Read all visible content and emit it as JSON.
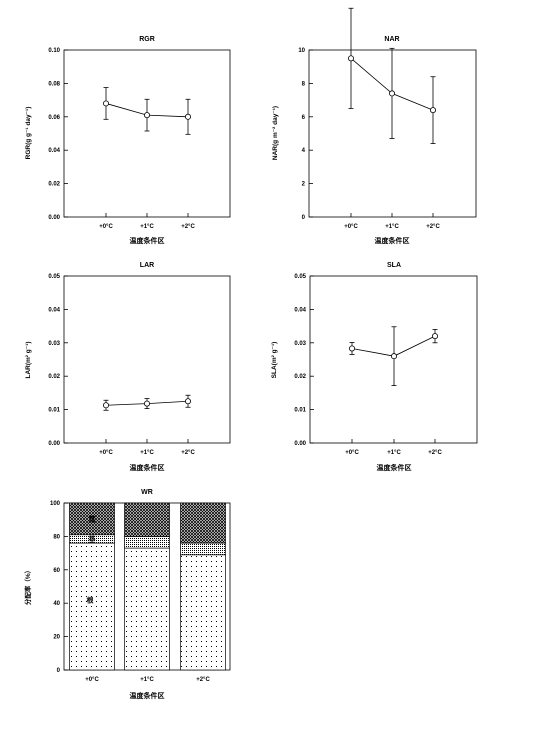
{
  "chart_data": [
    {
      "type": "line",
      "title": "RGR",
      "xlabel": "温度条件区",
      "ylabel": "RGR(g g⁻¹ day⁻¹)",
      "categories": [
        "+0°C",
        "+1°C",
        "+2°C"
      ],
      "values": [
        0.068,
        0.061,
        0.06
      ],
      "errors": [
        0.0095,
        0.0095,
        0.0105
      ],
      "ylim": [
        0,
        0.1
      ],
      "yticks": [
        "0.00",
        "0.02",
        "0.04",
        "0.06",
        "0.08",
        "0.10"
      ],
      "grid": false
    },
    {
      "type": "line",
      "title": "NAR",
      "xlabel": "温度条件区",
      "ylabel": "NAR(g m⁻² day⁻¹)",
      "categories": [
        "+0°C",
        "+1°C",
        "+2°C"
      ],
      "values": [
        9.5,
        7.4,
        6.4
      ],
      "errors": [
        3.0,
        2.7,
        2.0
      ],
      "ylim": [
        0,
        10
      ],
      "yticks": [
        "0",
        "2",
        "4",
        "6",
        "8",
        "10"
      ],
      "grid": false
    },
    {
      "type": "line",
      "title": "LAR",
      "xlabel": "温度条件区",
      "ylabel": "LAR(m² g⁻¹)",
      "categories": [
        "+0°C",
        "+1°C",
        "+2°C"
      ],
      "values": [
        0.0113,
        0.0118,
        0.0125
      ],
      "errors": [
        0.0015,
        0.0015,
        0.0018
      ],
      "ylim": [
        0,
        0.05
      ],
      "yticks": [
        "0.00",
        "0.01",
        "0.02",
        "0.03",
        "0.04",
        "0.05"
      ],
      "grid": false
    },
    {
      "type": "line",
      "title": "SLA",
      "xlabel": "温度条件区",
      "ylabel": "SLA(m² g⁻¹)",
      "categories": [
        "+0°C",
        "+1°C",
        "+2°C"
      ],
      "values": [
        0.0283,
        0.026,
        0.032
      ],
      "errors": [
        0.0018,
        0.0088,
        0.002
      ],
      "ylim": [
        0,
        0.05
      ],
      "yticks": [
        "0.00",
        "0.01",
        "0.02",
        "0.03",
        "0.04",
        "0.05"
      ],
      "grid": false
    },
    {
      "type": "bar",
      "stacked": true,
      "title": "WR",
      "xlabel": "温度条件区",
      "ylabel": "分配率（%）",
      "categories": [
        "+0°C",
        "+1°C",
        "+2°C"
      ],
      "series": [
        {
          "name": "根",
          "values": [
            76,
            73,
            69
          ],
          "pattern": "dots"
        },
        {
          "name": "茎",
          "values": [
            5,
            7,
            7
          ],
          "pattern": "fine-dots"
        },
        {
          "name": "葉",
          "values": [
            19,
            20,
            24
          ],
          "pattern": "crosshatch"
        }
      ],
      "ylim": [
        0,
        100
      ],
      "yticks": [
        "0",
        "20",
        "40",
        "60",
        "80",
        "100"
      ],
      "grid": false
    }
  ]
}
